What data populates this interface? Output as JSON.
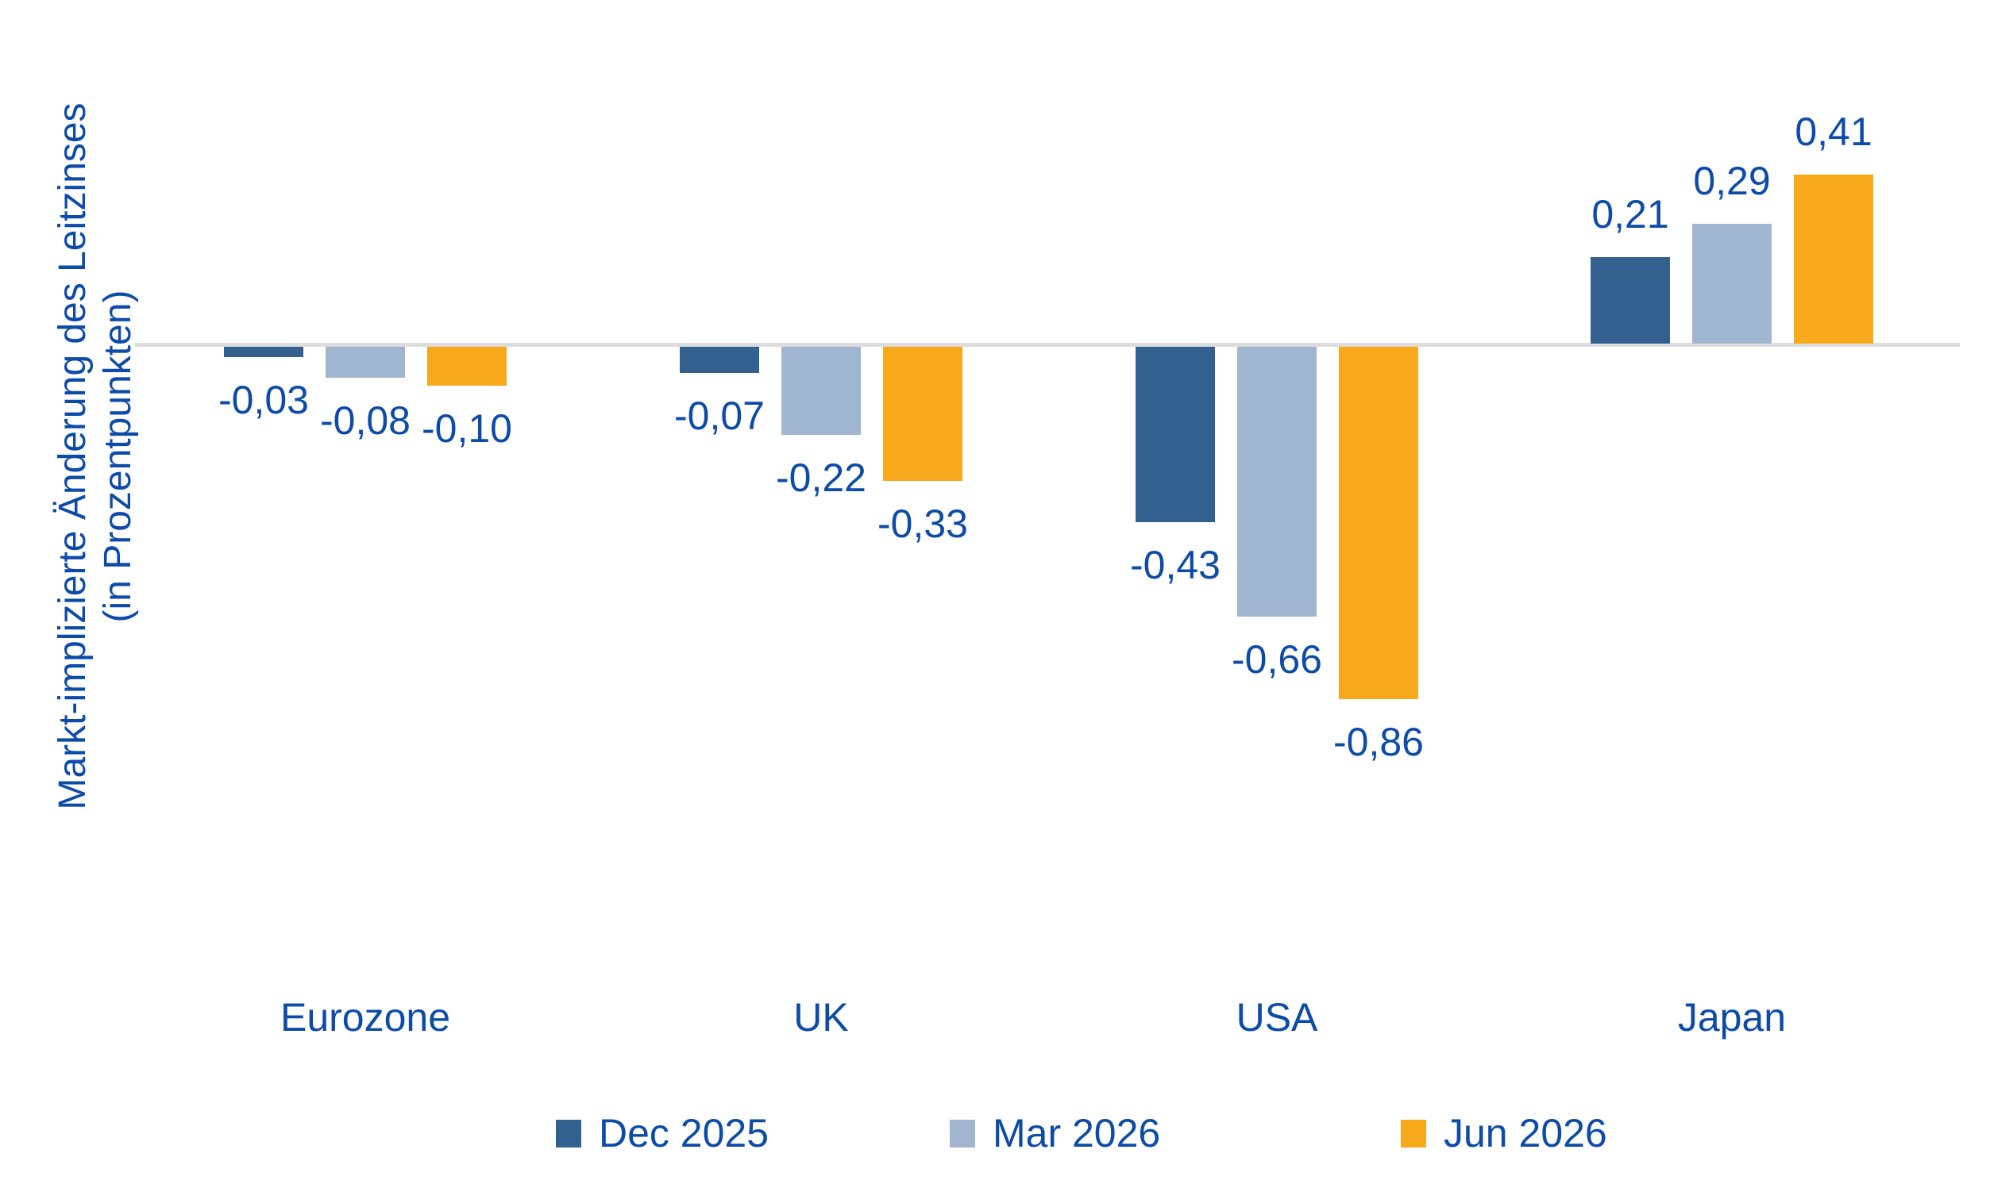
{
  "chart_data": {
    "type": "bar",
    "title": "",
    "ylabel_line1": "Markt-implizierte Änderung des Leitzinses",
    "ylabel_line2": "(in Prozentpunkten)",
    "xlabel": "",
    "categories": [
      "Eurozone",
      "UK",
      "USA",
      "Japan"
    ],
    "series": [
      {
        "name": "Dec 2025",
        "color": "#33618F",
        "values": [
          -0.03,
          -0.07,
          -0.43,
          0.21
        ],
        "labels": [
          "-0,03",
          "-0,07",
          "-0,43",
          "0,21"
        ]
      },
      {
        "name": "Mar 2026",
        "color": "#A0B5CF",
        "values": [
          -0.08,
          -0.22,
          -0.66,
          0.29
        ],
        "labels": [
          "-0,08",
          "-0,22",
          "-0,66",
          "0,29"
        ]
      },
      {
        "name": "Jun 2026",
        "color": "#F7A81B",
        "values": [
          -0.1,
          -0.33,
          -0.86,
          0.41
        ],
        "labels": [
          "-0,10",
          "-0,33",
          "-0,86",
          "0,41"
        ]
      }
    ],
    "ylim": [
      -0.95,
      0.5
    ],
    "grid": false,
    "legend_position": "bottom",
    "decimal_separator": ",",
    "text_color": "#0D4BA8",
    "axis_line_color": "#DCDCDC"
  }
}
